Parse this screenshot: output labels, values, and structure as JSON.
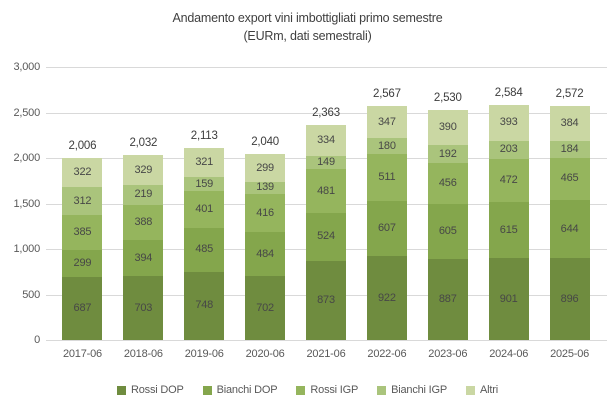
{
  "title": "Andamento export vini imbottigliati primo semestre",
  "subtitle": "(EURm, dati semestrali)",
  "chart_data": {
    "type": "bar",
    "stacked": true,
    "title": "Andamento export vini imbottigliati primo semestre",
    "subtitle": "(EURm, dati semestrali)",
    "categories": [
      "2017-06",
      "2018-06",
      "2019-06",
      "2020-06",
      "2021-06",
      "2022-06",
      "2023-06",
      "2024-06",
      "2025-06"
    ],
    "series": [
      {
        "name": "Rossi DOP",
        "color": "#6f8c3f",
        "values": [
          687,
          703,
          748,
          702,
          873,
          922,
          887,
          901,
          896
        ]
      },
      {
        "name": "Bianchi DOP",
        "color": "#84a64c",
        "values": [
          299,
          394,
          485,
          484,
          524,
          607,
          605,
          615,
          644
        ]
      },
      {
        "name": "Rossi IGP",
        "color": "#95b55d",
        "values": [
          385,
          388,
          401,
          416,
          481,
          511,
          456,
          472,
          465
        ]
      },
      {
        "name": "Bianchi IGP",
        "color": "#aac47c",
        "values": [
          312,
          219,
          159,
          139,
          149,
          180,
          192,
          203,
          184
        ]
      },
      {
        "name": "Altri",
        "color": "#cad7a3",
        "values": [
          322,
          329,
          321,
          299,
          334,
          347,
          390,
          393,
          384
        ]
      }
    ],
    "totals": [
      2006,
      2032,
      2113,
      2040,
      2363,
      2567,
      2530,
      2584,
      2572
    ],
    "totals_labels": [
      "2,006",
      "2,032",
      "2,113",
      "2,040",
      "2,363",
      "2,567",
      "2,530",
      "2,584",
      "2,572"
    ],
    "ylim": [
      0,
      3000
    ],
    "ytick_step": 500,
    "ytick_labels": [
      "0",
      "500",
      "1,000",
      "1,500",
      "2,000",
      "2,500",
      "3,000"
    ],
    "grid": true,
    "gridline_color": "#d9d9d9",
    "legend_position": "bottom",
    "text_colors": {
      "title": "#404040",
      "axis": "#595959",
      "segment_label": "#474747",
      "total_label": "#3d3d3d"
    }
  }
}
